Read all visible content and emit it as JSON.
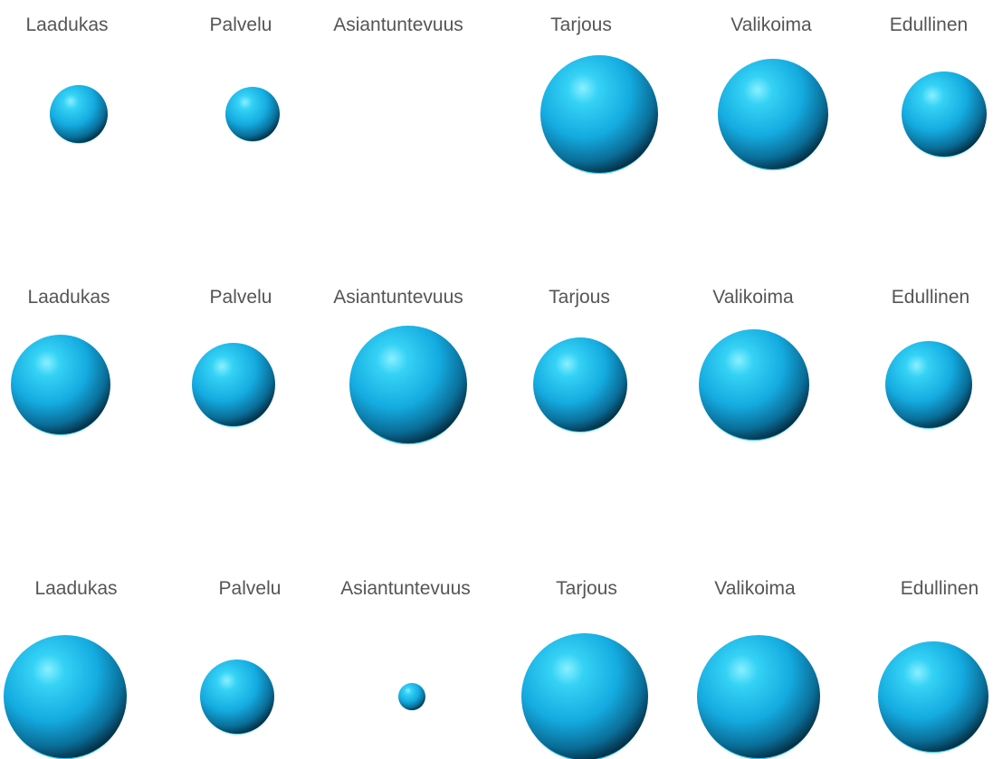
{
  "chart_data": {
    "type": "bubble",
    "title": "",
    "categories": [
      "Laadukas",
      "Palvelu",
      "Asiantuntevuus",
      "Tarjous",
      "Valikoima",
      "Edullinen"
    ],
    "series": [
      {
        "values": [
          64,
          60,
          0,
          130,
          122,
          94
        ]
      },
      {
        "values": [
          110,
          92,
          130,
          104,
          122,
          96
        ]
      },
      {
        "values": [
          136,
          82,
          30,
          140,
          136,
          122
        ]
      }
    ],
    "bubble_color": "#1ab4e6",
    "highlight_color": "#7fe8ff",
    "shadow_color": "#05324a",
    "grid": false,
    "legend": "none"
  }
}
